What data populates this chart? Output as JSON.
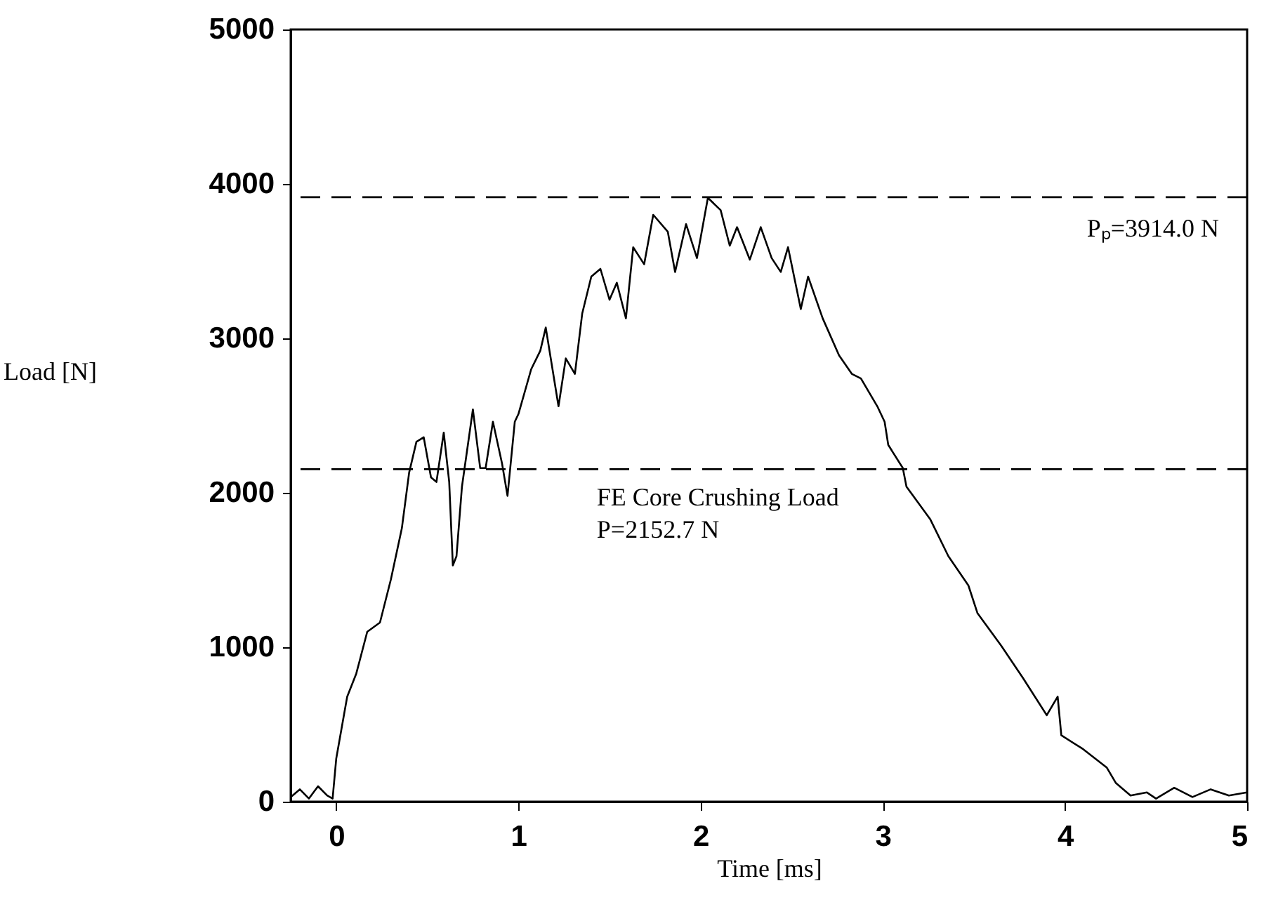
{
  "chart_data": {
    "type": "line",
    "xlabel": "Time [ms]",
    "ylabel": "Load [N]",
    "x": [
      -0.25,
      -0.2,
      -0.15,
      -0.1,
      -0.05,
      -0.02,
      0.0,
      0.06,
      0.11,
      0.17,
      0.24,
      0.3,
      0.36,
      0.4,
      0.44,
      0.48,
      0.52,
      0.55,
      0.59,
      0.62,
      0.64,
      0.66,
      0.69,
      0.75,
      0.79,
      0.82,
      0.86,
      0.91,
      0.94,
      0.98,
      1.0,
      1.07,
      1.12,
      1.15,
      1.22,
      1.26,
      1.31,
      1.35,
      1.4,
      1.45,
      1.5,
      1.54,
      1.59,
      1.63,
      1.69,
      1.74,
      1.82,
      1.86,
      1.92,
      1.98,
      2.04,
      2.11,
      2.16,
      2.2,
      2.27,
      2.33,
      2.39,
      2.44,
      2.48,
      2.55,
      2.59,
      2.67,
      2.76,
      2.83,
      2.88,
      2.97,
      3.01,
      3.03,
      3.11,
      3.13,
      3.26,
      3.36,
      3.47,
      3.52,
      3.65,
      3.77,
      3.9,
      3.96,
      3.98,
      4.1,
      4.23,
      4.28,
      4.36,
      4.45,
      4.5,
      4.6,
      4.7,
      4.8,
      4.9,
      5.0
    ],
    "series": [
      {
        "color": "#000000",
        "values": [
          30,
          80,
          20,
          100,
          40,
          20,
          280,
          680,
          830,
          1100,
          1160,
          1440,
          1770,
          2130,
          2330,
          2360,
          2100,
          2070,
          2390,
          2070,
          1530,
          1590,
          2040,
          2540,
          2160,
          2160,
          2460,
          2190,
          1980,
          2460,
          2510,
          2800,
          2920,
          3070,
          2560,
          2870,
          2770,
          3160,
          3400,
          3450,
          3250,
          3360,
          3130,
          3590,
          3480,
          3800,
          3690,
          3430,
          3740,
          3520,
          3910,
          3830,
          3600,
          3720,
          3510,
          3720,
          3520,
          3430,
          3590,
          3190,
          3400,
          3130,
          2890,
          2770,
          2740,
          2560,
          2460,
          2310,
          2160,
          2040,
          1830,
          1590,
          1400,
          1220,
          1010,
          800,
          560,
          680,
          430,
          340,
          220,
          120,
          40,
          60,
          20,
          90,
          30,
          80,
          40,
          60
        ]
      }
    ],
    "xlim": [
      -0.25,
      5
    ],
    "xticks": [
      0,
      1,
      2,
      3,
      4,
      5
    ],
    "ylim": [
      0,
      5000
    ],
    "yticks": [
      0,
      1000,
      2000,
      3000,
      4000,
      5000
    ],
    "grid": false,
    "marker": "none",
    "ref_lines": [
      {
        "axis": "y",
        "value": 3914.0,
        "label": "Pₚ=3914.0 N",
        "line_style": "dashed",
        "color": "#000000"
      },
      {
        "axis": "y",
        "value": 2152.7,
        "label": "FE Core Crushing Load\nP=2152.7 N",
        "line_style": "dashed",
        "color": "#000000"
      }
    ]
  }
}
